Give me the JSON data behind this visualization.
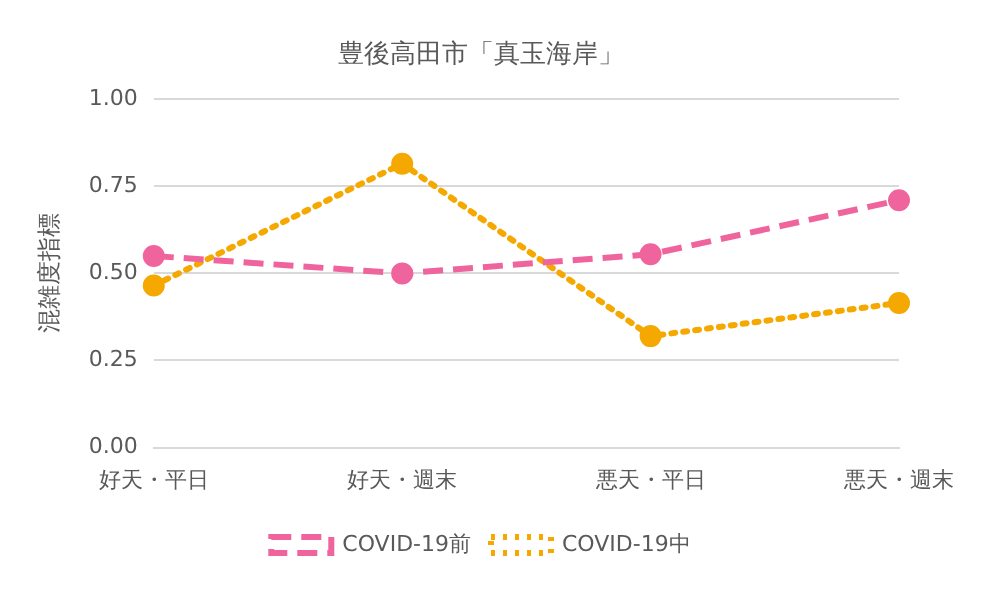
{
  "chart_data": {
    "type": "line",
    "title": "豊後高田市「真玉海岸」",
    "ylabel": "混雑度指標",
    "categories": [
      "好天・平日",
      "好天・週末",
      "悪天・平日",
      "悪天・週末"
    ],
    "series": [
      {
        "name": "COVID-19前",
        "color": "#f0649e",
        "values": [
          0.55,
          0.5,
          0.555,
          0.71
        ],
        "line_style": "dashed"
      },
      {
        "name": "COVID-19中",
        "color": "#f5a800",
        "values": [
          0.465,
          0.815,
          0.32,
          0.415
        ],
        "line_style": "dotted"
      }
    ],
    "ylim": [
      0,
      1
    ],
    "yticks": [
      {
        "value": 0,
        "label": "0.00"
      },
      {
        "value": 0.25,
        "label": "0.25"
      },
      {
        "value": 0.5,
        "label": "0.50"
      },
      {
        "value": 0.75,
        "label": "0.75"
      },
      {
        "value": 1,
        "label": "1.00"
      }
    ],
    "grid": "y",
    "legend": "bottom",
    "marker": "circle"
  }
}
